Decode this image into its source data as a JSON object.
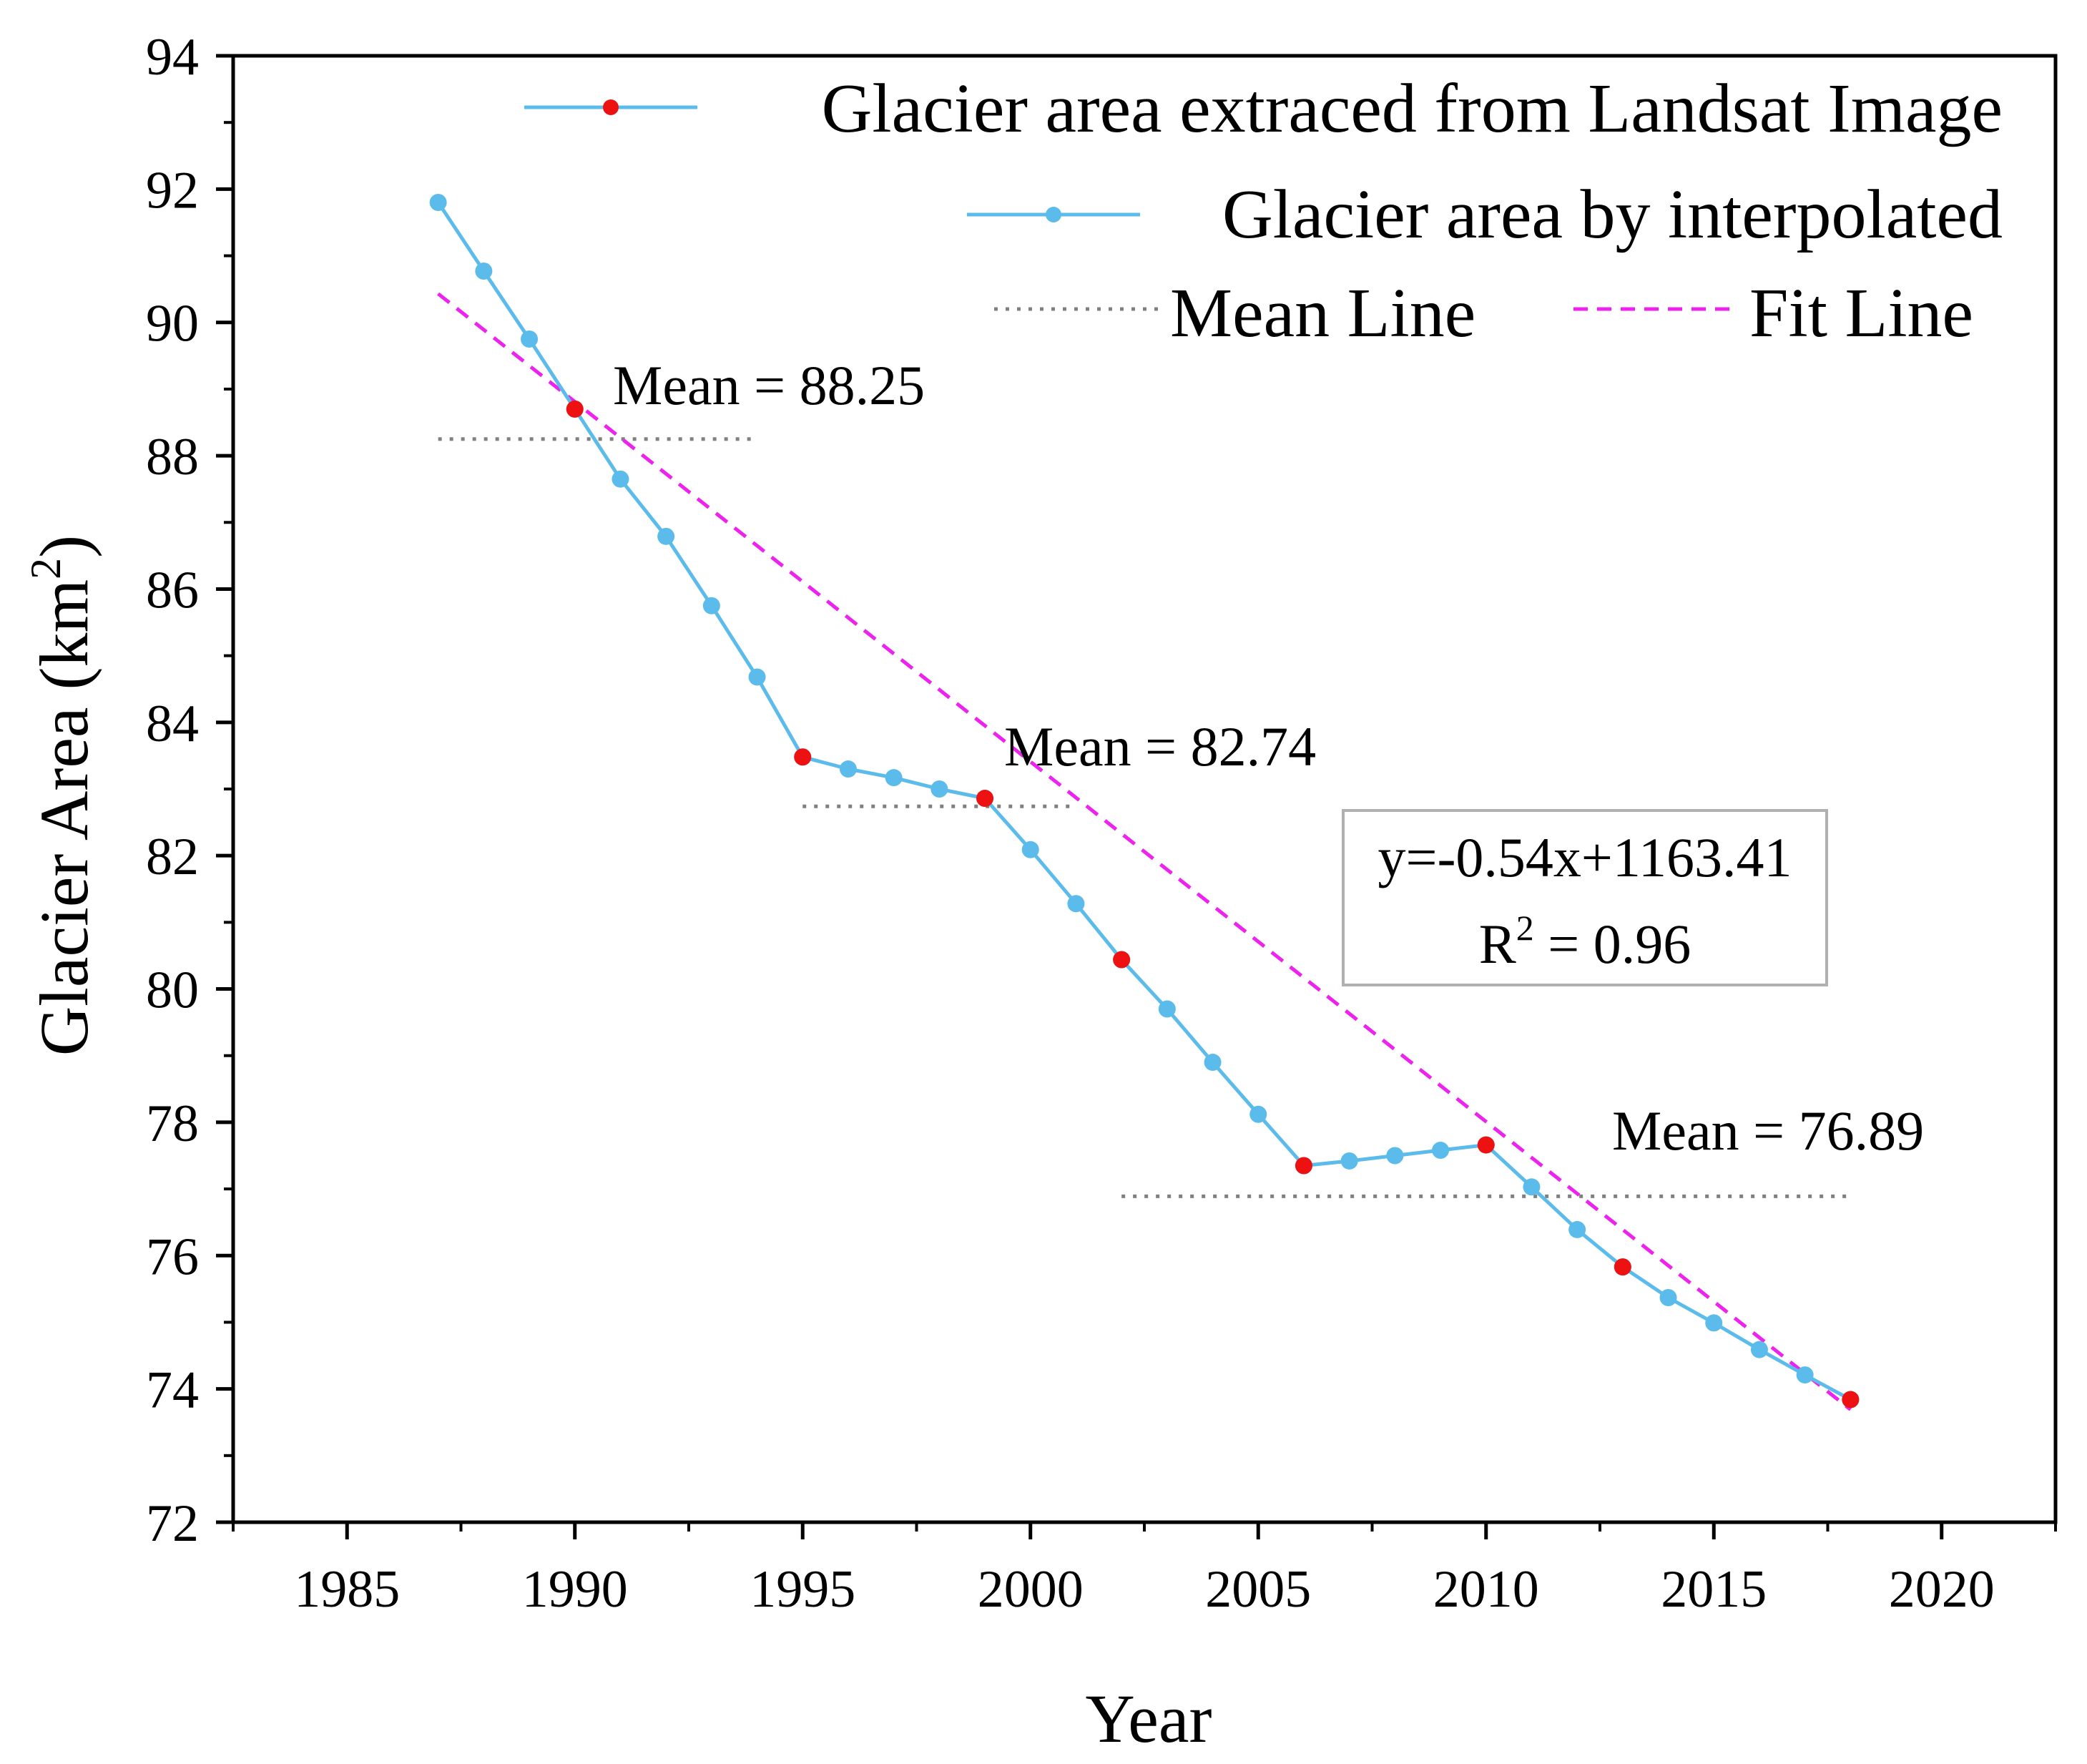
{
  "chart_data": {
    "type": "line",
    "xlabel": "Year",
    "ylabel": "Glacier Area (km",
    "ylabel_sup": "2",
    "ylabel_close": ")",
    "xlim": [
      1982.5,
      2022.5
    ],
    "ylim": [
      72,
      94
    ],
    "xticks": [
      1985,
      1990,
      1995,
      2000,
      2005,
      2010,
      2015,
      2020
    ],
    "yticks": [
      72,
      74,
      76,
      78,
      80,
      82,
      84,
      86,
      88,
      90,
      92,
      94
    ],
    "series": [
      {
        "name": "Glacier area by interpolated",
        "color": "#5bbcec",
        "x": [
          1987,
          1988,
          1989,
          1990,
          1991,
          1992,
          1993,
          1994,
          1995,
          1996,
          1997,
          1998,
          1999,
          2000,
          2001,
          2002,
          2003,
          2004,
          2005,
          2006,
          2007,
          2008,
          2009,
          2010,
          2011,
          2012,
          2013,
          2014,
          2015,
          2016,
          2017,
          2018
        ],
        "y": [
          91.8,
          90.77,
          89.75,
          88.7,
          87.65,
          86.79,
          85.75,
          84.68,
          83.48,
          83.3,
          83.17,
          83.0,
          82.86,
          82.09,
          81.28,
          80.44,
          79.7,
          78.9,
          78.12,
          77.35,
          77.42,
          77.5,
          77.58,
          77.66,
          77.03,
          76.39,
          75.83,
          75.37,
          74.99,
          74.59,
          74.21,
          73.84
        ]
      },
      {
        "name": "Glacier area extraced from Landsat Image",
        "color": "#5bbcec",
        "marker_color": "#ee1111",
        "x": [
          1990,
          1995,
          1999,
          2002,
          2006,
          2010,
          2013,
          2018
        ],
        "y": [
          88.7,
          83.48,
          82.86,
          80.44,
          77.35,
          77.66,
          75.83,
          73.84
        ]
      }
    ],
    "mean_lines": [
      {
        "label": "Mean = 88.25",
        "value": 88.25,
        "x_range": [
          1987,
          1994
        ]
      },
      {
        "label": "Mean = 82.74",
        "value": 82.74,
        "x_range": [
          1995,
          2001
        ]
      },
      {
        "label": "Mean = 76.89",
        "value": 76.89,
        "x_range": [
          2002,
          2018
        ]
      }
    ],
    "fit_line": {
      "label": "Fit Line",
      "slope": -0.54,
      "intercept": 1163.41,
      "x_range": [
        1987,
        2018
      ],
      "color": "#ee22ee"
    },
    "fit_equation": "y=-0.54x+1163.41",
    "r2_prefix": "R",
    "r2_sup": "2",
    "r2_value": " = 0.96",
    "legend": {
      "placement": "top-right",
      "extracted": "Glacier area extraced from Landsat Image",
      "interpolated": "Glacier area by interpolated",
      "mean": "Mean Line",
      "fit": "Fit Line"
    },
    "colors": {
      "line": "#5bbcec",
      "extracted_marker": "#ee1111",
      "mean_line": "#808080",
      "fit_line": "#ee22ee"
    }
  }
}
